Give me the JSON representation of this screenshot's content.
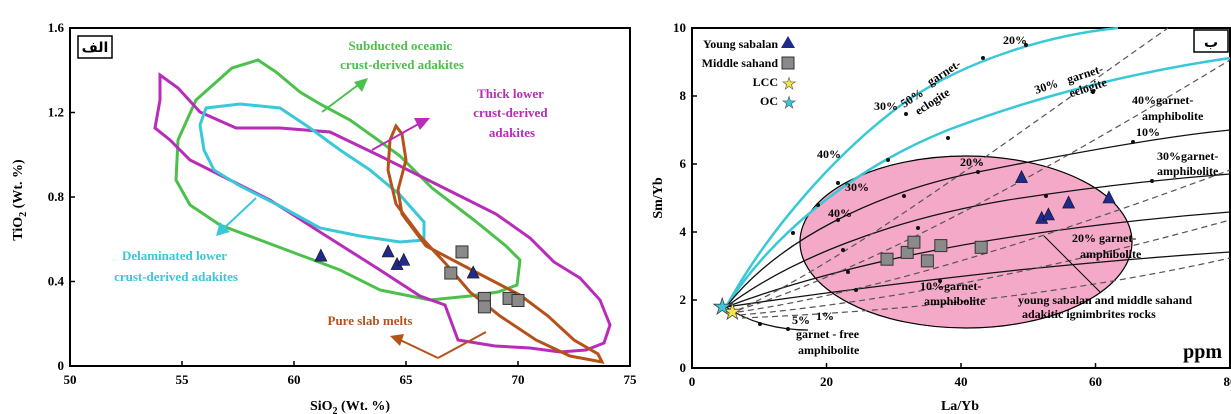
{
  "chart_data": [
    {
      "type": "scatter",
      "panel_label": "الف",
      "xlabel": "SiO2 (Wt. %)",
      "ylabel": "TiO2 (Wt. %)",
      "xlim": [
        50,
        75
      ],
      "ylim": [
        0,
        1.6
      ],
      "xticks": [
        "50",
        "55",
        "60",
        "65",
        "70",
        "75"
      ],
      "yticks": [
        "0",
        "0.4",
        "0.8",
        "1.2",
        "1.6"
      ],
      "fields": [
        {
          "label": "Subducted oceanic crust-derived adakites",
          "lines": [
            "Subducted oceanic",
            "crust-derived adakites"
          ],
          "color": "#4cc04c"
        },
        {
          "label": "Thick lower crust-derived adakites",
          "lines": [
            "Thick lower",
            "crust-derived",
            "adakites"
          ],
          "color": "#b82cb8"
        },
        {
          "label": "Delaminated lower crust-derived adakites",
          "lines": [
            "Delaminated lower",
            "crust-derived adakites"
          ],
          "color": "#38c8d8"
        },
        {
          "label": "Pure slab melts",
          "lines": [
            "Pure slab melts"
          ],
          "color": "#b5521c"
        }
      ],
      "series": [
        {
          "marker": "triangle",
          "color": "#1f2a8a",
          "points": [
            [
              61.2,
              0.52
            ],
            [
              64.2,
              0.54
            ],
            [
              64.6,
              0.48
            ],
            [
              64.9,
              0.5
            ],
            [
              68.0,
              0.44
            ]
          ]
        },
        {
          "marker": "square",
          "color": "#8a8a8a",
          "points": [
            [
              67.5,
              0.54
            ],
            [
              67.0,
              0.44
            ],
            [
              68.5,
              0.32
            ],
            [
              68.5,
              0.28
            ],
            [
              69.6,
              0.32
            ],
            [
              70.0,
              0.31
            ]
          ]
        }
      ]
    },
    {
      "type": "scatter",
      "panel_label": "ب",
      "xlabel": "La/Yb",
      "ylabel": "Sm/Yb",
      "unit_label": "ppm",
      "xlim": [
        0,
        80
      ],
      "ylim": [
        0,
        10
      ],
      "xticks": [
        "0",
        "20",
        "40",
        "60",
        "80"
      ],
      "yticks": [
        "0",
        "2",
        "4",
        "6",
        "8",
        "10"
      ],
      "legend": [
        {
          "label": "Young sabalan",
          "marker": "triangle",
          "color": "#1f2a8a"
        },
        {
          "label": "Middle sahand",
          "marker": "square",
          "color": "#8a8a8a"
        },
        {
          "label": "LCC",
          "marker": "star",
          "color": "#f5e642"
        },
        {
          "label": "OC",
          "marker": "star",
          "color": "#38c8d8"
        }
      ],
      "curve_labels": {
        "garnet_eclogite_50": [
          "50%",
          "garnet-",
          "eclogite"
        ],
        "garnet_eclogite_30": [
          "30%",
          "garnet-",
          "eclogite"
        ],
        "garnet_amphibolite_40": [
          "40%garnet-",
          "amphibolite"
        ],
        "garnet_amphibolite_30": [
          "30%garnet-",
          "amphibolite"
        ],
        "garnet_amphibolite_20": [
          "20% garnet-",
          "amphibolite"
        ],
        "garnet_amphibolite_10": [
          "10%garnet-",
          "amphibolite"
        ],
        "garnet_free": [
          "5%",
          "1%",
          "garnet - free",
          "amphibolite"
        ]
      },
      "percent_marks": [
        "20%",
        "30%",
        "40%",
        "10%",
        "20%",
        "30%",
        "40%"
      ],
      "field_note": [
        "young sabalan and middle sahand",
        "adakitic ignimbrites rocks"
      ],
      "series": [
        {
          "name": "Young sabalan",
          "marker": "triangle",
          "color": "#1f2a8a",
          "points": [
            [
              49,
              5.6
            ],
            [
              52,
              4.4
            ],
            [
              53,
              4.5
            ],
            [
              56,
              4.85
            ],
            [
              62,
              5.0
            ]
          ]
        },
        {
          "name": "Middle sahand",
          "marker": "square",
          "color": "#8a8a8a",
          "points": [
            [
              29,
              3.2
            ],
            [
              32,
              3.4
            ],
            [
              33,
              3.7
            ],
            [
              35,
              3.15
            ],
            [
              37,
              3.6
            ],
            [
              43,
              3.55
            ]
          ]
        },
        {
          "name": "LCC",
          "marker": "star",
          "color": "#f5e642",
          "points": [
            [
              6,
              1.65
            ]
          ]
        },
        {
          "name": "OC",
          "marker": "star",
          "color": "#38c8d8",
          "points": [
            [
              4.5,
              1.8
            ]
          ]
        }
      ]
    }
  ]
}
